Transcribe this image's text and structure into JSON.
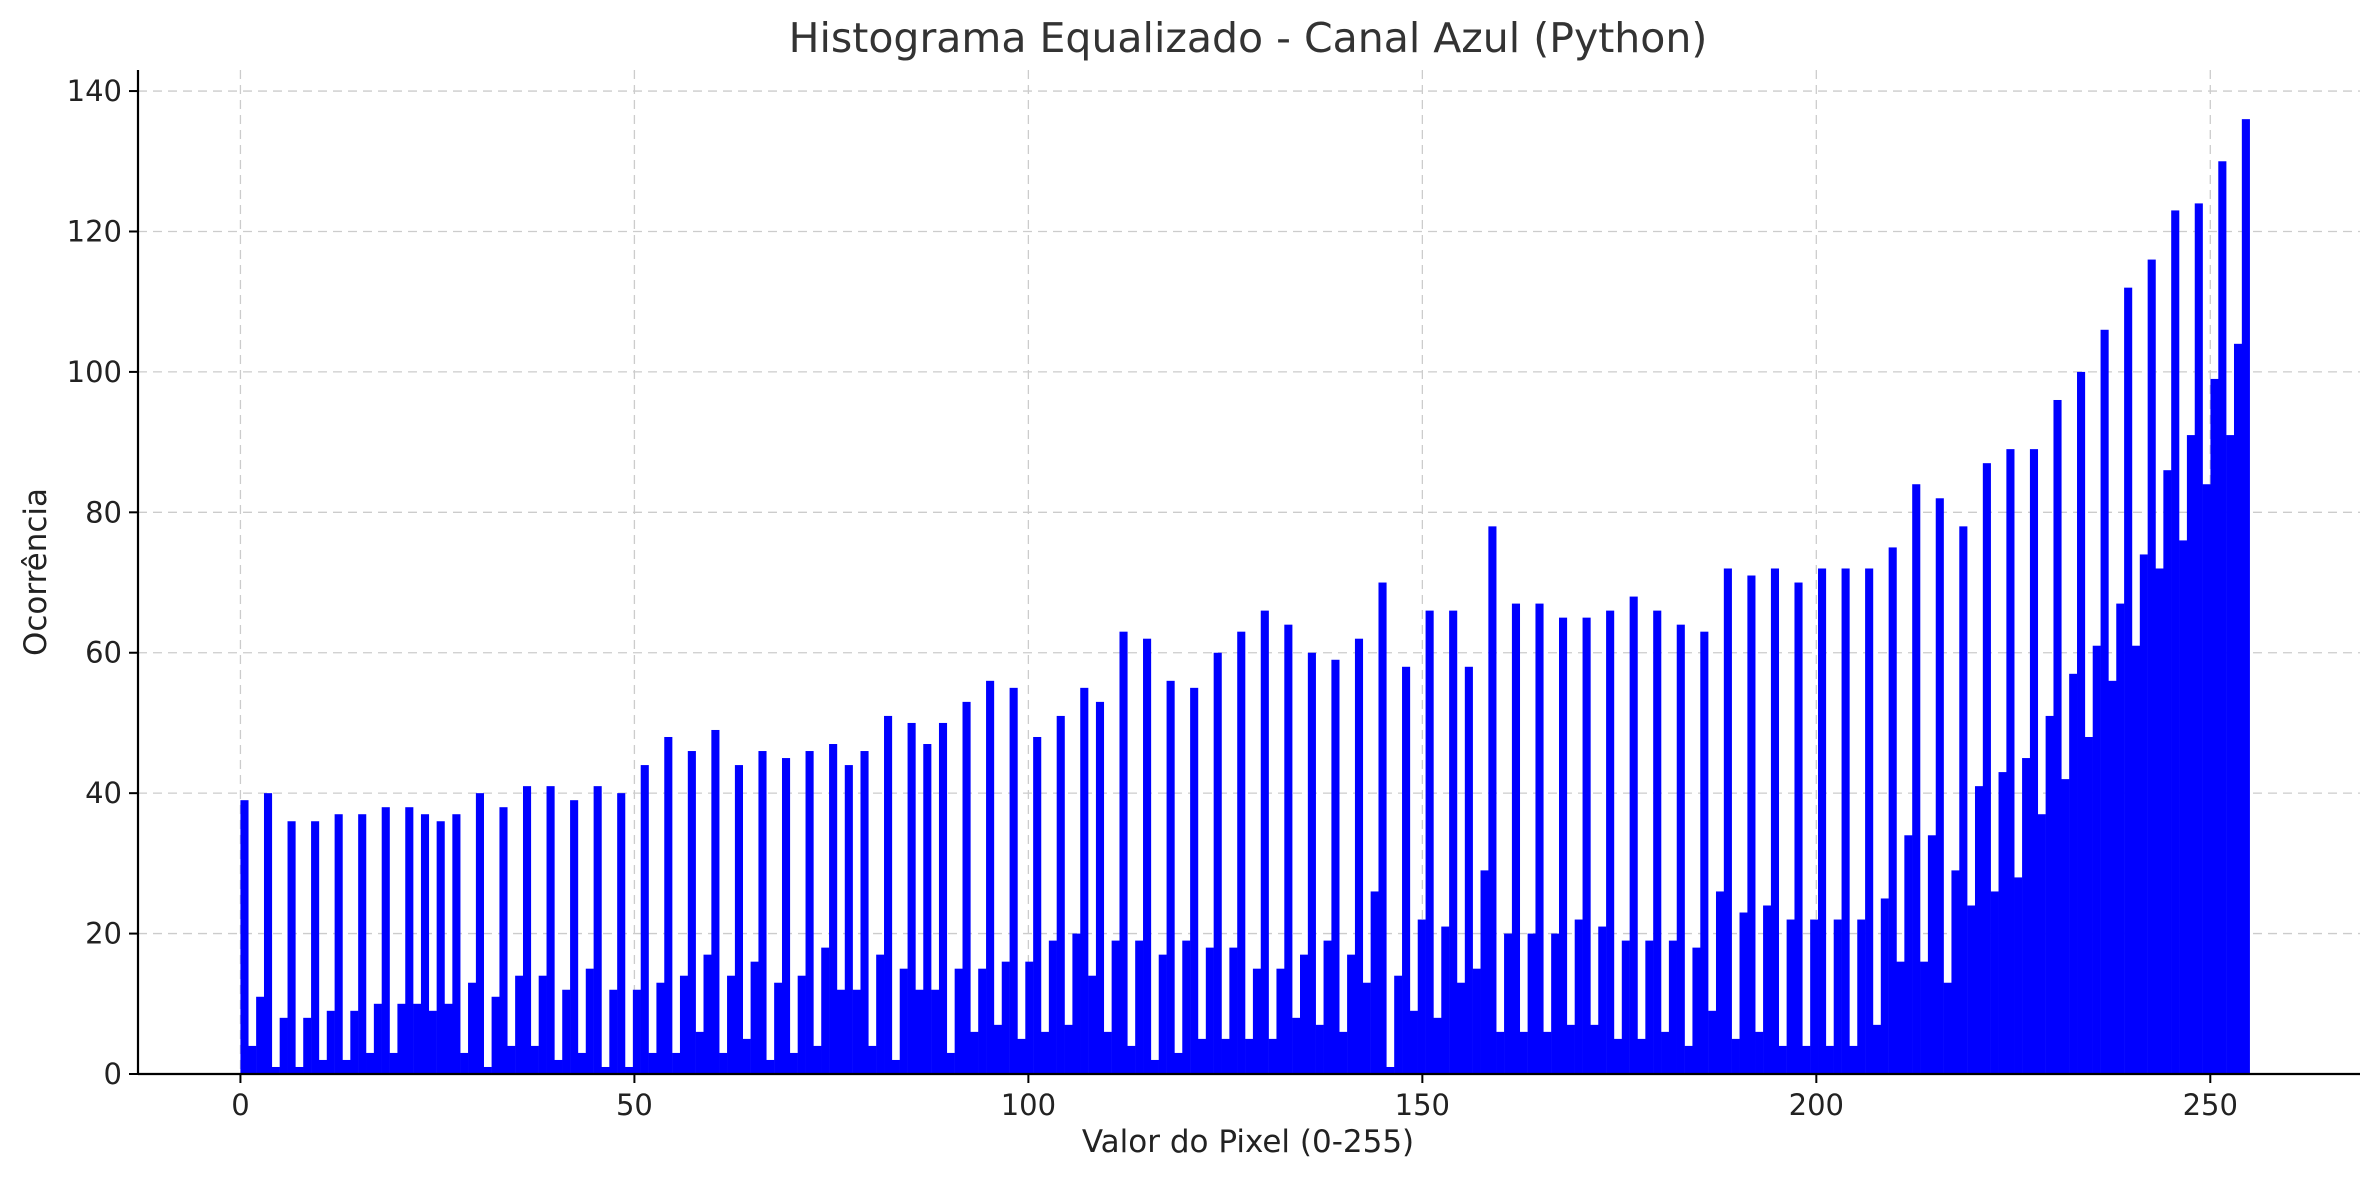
{
  "chart_data": {
    "type": "bar",
    "title": "Histograma Equalizado - Canal Azul (Python)",
    "xlabel": "Valor do Pixel (0-255)",
    "ylabel": "Ocorrência",
    "xlim": [
      -13,
      269
    ],
    "ylim": [
      0,
      143
    ],
    "x_ticks": [
      0,
      50,
      100,
      150,
      200,
      250
    ],
    "y_ticks": [
      0,
      20,
      40,
      60,
      80,
      100,
      120,
      140
    ],
    "grid": true,
    "bar_color": "#0000ff",
    "values": [
      39,
      4,
      11,
      40,
      1,
      8,
      36,
      1,
      8,
      36,
      2,
      9,
      37,
      2,
      9,
      37,
      3,
      10,
      38,
      3,
      10,
      38,
      10,
      37,
      9,
      36,
      10,
      37,
      3,
      13,
      40,
      1,
      11,
      38,
      4,
      14,
      41,
      4,
      14,
      41,
      2,
      12,
      39,
      3,
      15,
      41,
      1,
      12,
      40,
      1,
      12,
      44,
      3,
      13,
      48,
      3,
      14,
      46,
      6,
      17,
      49,
      3,
      14,
      44,
      5,
      16,
      46,
      2,
      13,
      45,
      3,
      14,
      46,
      4,
      18,
      47,
      12,
      44,
      12,
      46,
      4,
      17,
      51,
      2,
      15,
      50,
      12,
      47,
      12,
      50,
      3,
      15,
      53,
      6,
      15,
      56,
      7,
      16,
      55,
      5,
      16,
      48,
      6,
      19,
      51,
      7,
      20,
      55,
      14,
      53,
      6,
      19,
      63,
      4,
      19,
      62,
      2,
      17,
      56,
      3,
      19,
      55,
      5,
      18,
      60,
      5,
      18,
      63,
      5,
      15,
      66,
      5,
      15,
      64,
      8,
      17,
      60,
      7,
      19,
      59,
      6,
      17,
      62,
      13,
      26,
      70,
      1,
      14,
      58,
      9,
      22,
      66,
      8,
      21,
      66,
      13,
      58,
      15,
      29,
      78,
      6,
      20,
      67,
      6,
      20,
      67,
      6,
      20,
      65,
      7,
      22,
      65,
      7,
      21,
      66,
      5,
      19,
      68,
      5,
      19,
      66,
      6,
      19,
      64,
      4,
      18,
      63,
      9,
      26,
      72,
      5,
      23,
      71,
      6,
      24,
      72,
      4,
      22,
      70,
      4,
      22,
      72,
      4,
      22,
      72,
      4,
      22,
      72,
      7,
      25,
      75,
      16,
      34,
      84,
      16,
      34,
      82,
      13,
      29,
      78,
      24,
      41,
      87,
      26,
      43,
      89,
      28,
      45,
      89,
      37,
      51,
      96,
      42,
      57,
      100,
      48,
      61,
      106,
      56,
      67,
      112,
      61,
      74,
      116,
      72,
      86,
      123,
      76,
      91,
      124,
      84,
      99,
      130,
      91,
      104,
      136
    ]
  }
}
